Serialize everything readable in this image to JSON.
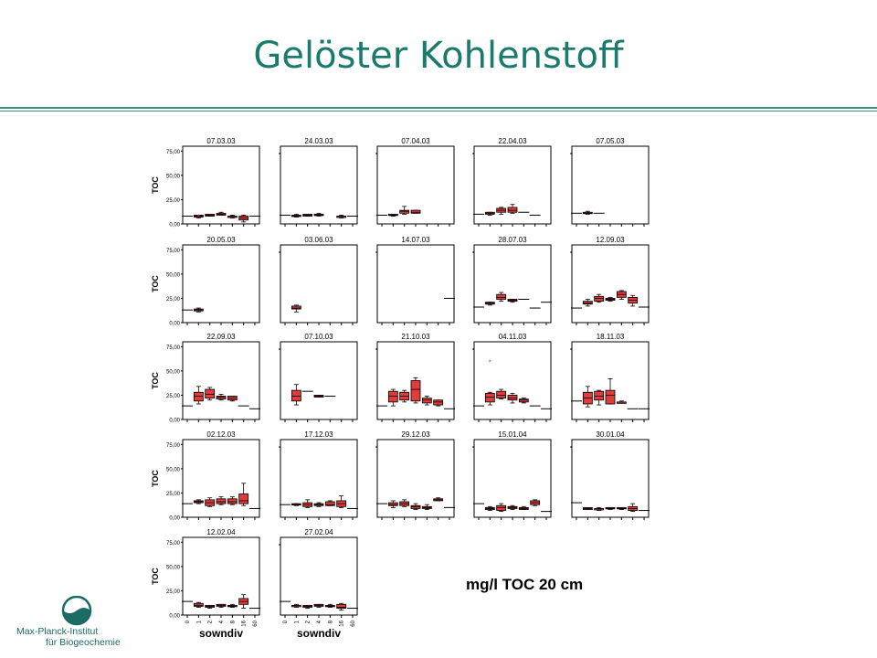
{
  "title": "Gelöster Kohlenstoff",
  "caption": "mg/l TOC 20 cm",
  "logo": {
    "line1": "Max-Planck-Institut",
    "line2": "für Biogeochemie"
  },
  "colors": {
    "title": "#1a7a6c",
    "box": "#e23b3b",
    "rule": "#3a8f85"
  },
  "chart_data": {
    "type": "box",
    "ylabel": "TOC",
    "xlabel": "sowndiv",
    "categories": [
      "0",
      "1",
      "2",
      "4",
      "8",
      "16",
      "60"
    ],
    "yticks": [
      "0,00",
      "25,00",
      "50,00",
      "75,00"
    ],
    "ylim": [
      0,
      80
    ],
    "panels": [
      {
        "date": "07.03.03",
        "boxes": [
          {
            "c": 0,
            "line": 8
          },
          {
            "c": 1,
            "min": 6,
            "q1": 7,
            "med": 8,
            "q3": 9,
            "max": 9
          },
          {
            "c": 2,
            "min": 8,
            "q1": 8,
            "med": 9,
            "q3": 10,
            "max": 10
          },
          {
            "c": 3,
            "min": 9,
            "q1": 9,
            "med": 10,
            "q3": 11,
            "max": 12
          },
          {
            "c": 4,
            "min": 6,
            "q1": 7,
            "med": 8,
            "q3": 8,
            "max": 9
          },
          {
            "c": 5,
            "min": 2,
            "q1": 4,
            "med": 6,
            "q3": 8,
            "max": 9
          },
          {
            "c": 6,
            "line": 8
          }
        ],
        "outliers": [
          {
            "c": 1,
            "y": 6
          }
        ]
      },
      {
        "date": "24.03.03",
        "boxes": [
          {
            "c": 0,
            "line": 9
          },
          {
            "c": 1,
            "min": 7,
            "q1": 8,
            "med": 8,
            "q3": 9,
            "max": 10
          },
          {
            "c": 2,
            "min": 8,
            "q1": 8,
            "med": 9,
            "q3": 10,
            "max": 10
          },
          {
            "c": 3,
            "min": 8,
            "q1": 9,
            "med": 9,
            "q3": 10,
            "max": 11
          },
          {
            "c": 5,
            "min": 6,
            "q1": 7,
            "med": 8,
            "q3": 8,
            "max": 9
          },
          {
            "c": 6,
            "line": 8
          }
        ],
        "outliers": []
      },
      {
        "date": "07.04.03",
        "boxes": [
          {
            "c": 0,
            "line": 9
          },
          {
            "c": 1,
            "min": 8,
            "q1": 9,
            "med": 9,
            "q3": 10,
            "max": 10
          },
          {
            "c": 2,
            "min": 10,
            "q1": 11,
            "med": 13,
            "q3": 14,
            "max": 18
          },
          {
            "c": 3,
            "min": 11,
            "q1": 11,
            "med": 12,
            "q3": 14,
            "max": 14
          }
        ],
        "outliers": []
      },
      {
        "date": "22.04.03",
        "boxes": [
          {
            "c": 0,
            "line": 10
          },
          {
            "c": 1,
            "min": 9,
            "q1": 10,
            "med": 11,
            "q3": 12,
            "max": 12
          },
          {
            "c": 2,
            "min": 10,
            "q1": 12,
            "med": 14,
            "q3": 16,
            "max": 17
          },
          {
            "c": 3,
            "min": 11,
            "q1": 12,
            "med": 14,
            "q3": 17,
            "max": 20
          },
          {
            "c": 4,
            "line": 12
          },
          {
            "c": 5,
            "line": 9
          }
        ],
        "outliers": []
      },
      {
        "date": "07.05.03",
        "boxes": [
          {
            "c": 0,
            "line": 11
          },
          {
            "c": 1,
            "min": 10,
            "q1": 11,
            "med": 11,
            "q3": 12,
            "max": 13
          },
          {
            "c": 2,
            "line": 11
          }
        ],
        "outliers": []
      },
      {
        "date": "20.05.03",
        "boxes": [
          {
            "c": 0,
            "line": 13
          },
          {
            "c": 1,
            "min": 11,
            "q1": 12,
            "med": 13,
            "q3": 14,
            "max": 15
          }
        ],
        "outliers": []
      },
      {
        "date": "03.06.03",
        "boxes": [
          {
            "c": 1,
            "min": 11,
            "q1": 14,
            "med": 15,
            "q3": 17,
            "max": 18
          }
        ],
        "outliers": []
      },
      {
        "date": "14.07.03",
        "boxes": [
          {
            "c": 6,
            "line": 25
          }
        ],
        "outliers": []
      },
      {
        "date": "28.07.03",
        "boxes": [
          {
            "c": 0,
            "line": 16
          },
          {
            "c": 1,
            "min": 18,
            "q1": 19,
            "med": 20,
            "q3": 21,
            "max": 21
          },
          {
            "c": 2,
            "min": 22,
            "q1": 24,
            "med": 26,
            "q3": 29,
            "max": 31
          },
          {
            "c": 3,
            "min": 21,
            "q1": 22,
            "med": 23,
            "q3": 24,
            "max": 24
          },
          {
            "c": 4,
            "line": 24
          },
          {
            "c": 5,
            "line": 15
          },
          {
            "c": 6,
            "line": 21
          }
        ],
        "outliers": []
      },
      {
        "date": "12.09.03",
        "boxes": [
          {
            "c": 0,
            "line": 15
          },
          {
            "c": 1,
            "min": 17,
            "q1": 19,
            "med": 20,
            "q3": 22,
            "max": 24
          },
          {
            "c": 2,
            "min": 21,
            "q1": 22,
            "med": 25,
            "q3": 27,
            "max": 29
          },
          {
            "c": 3,
            "min": 22,
            "q1": 23,
            "med": 24,
            "q3": 25,
            "max": 26
          },
          {
            "c": 4,
            "min": 24,
            "q1": 26,
            "med": 29,
            "q3": 32,
            "max": 33
          },
          {
            "c": 5,
            "min": 17,
            "q1": 20,
            "med": 23,
            "q3": 26,
            "max": 28
          },
          {
            "c": 6,
            "line": 16
          }
        ],
        "outliers": []
      },
      {
        "date": "22.09.03",
        "boxes": [
          {
            "c": 0,
            "line": 14
          },
          {
            "c": 1,
            "min": 16,
            "q1": 19,
            "med": 24,
            "q3": 28,
            "max": 34
          },
          {
            "c": 2,
            "min": 20,
            "q1": 22,
            "med": 26,
            "q3": 31,
            "max": 33
          },
          {
            "c": 3,
            "min": 20,
            "q1": 21,
            "med": 23,
            "q3": 24,
            "max": 26
          },
          {
            "c": 4,
            "min": 19,
            "q1": 20,
            "med": 22,
            "q3": 24,
            "max": 24
          },
          {
            "c": 5,
            "line": 14
          },
          {
            "c": 6,
            "line": 11
          }
        ],
        "outliers": []
      },
      {
        "date": "07.10.03",
        "boxes": [
          {
            "c": 1,
            "min": 15,
            "q1": 19,
            "med": 24,
            "q3": 30,
            "max": 36
          },
          {
            "c": 2,
            "line": 29
          },
          {
            "c": 3,
            "min": 23,
            "q1": 23,
            "med": 24,
            "q3": 25,
            "max": 25
          },
          {
            "c": 4,
            "line": 24
          }
        ],
        "outliers": []
      },
      {
        "date": "21.10.03",
        "boxes": [
          {
            "c": 0,
            "line": 14
          },
          {
            "c": 1,
            "min": 14,
            "q1": 18,
            "med": 24,
            "q3": 29,
            "max": 31
          },
          {
            "c": 2,
            "min": 18,
            "q1": 20,
            "med": 24,
            "q3": 28,
            "max": 30
          },
          {
            "c": 3,
            "min": 17,
            "q1": 19,
            "med": 31,
            "q3": 40,
            "max": 43
          },
          {
            "c": 4,
            "min": 15,
            "q1": 17,
            "med": 20,
            "q3": 22,
            "max": 24
          },
          {
            "c": 5,
            "min": 14,
            "q1": 15,
            "med": 18,
            "q3": 20,
            "max": 20
          },
          {
            "c": 6,
            "line": 11
          }
        ],
        "outliers": []
      },
      {
        "date": "04.11.03",
        "boxes": [
          {
            "c": 0,
            "line": 14
          },
          {
            "c": 1,
            "min": 15,
            "q1": 18,
            "med": 23,
            "q3": 27,
            "max": 28
          },
          {
            "c": 2,
            "min": 21,
            "q1": 22,
            "med": 25,
            "q3": 29,
            "max": 31
          },
          {
            "c": 3,
            "min": 17,
            "q1": 20,
            "med": 22,
            "q3": 25,
            "max": 27
          },
          {
            "c": 4,
            "min": 17,
            "q1": 18,
            "med": 20,
            "q3": 21,
            "max": 22
          },
          {
            "c": 5,
            "line": 14
          },
          {
            "c": 6,
            "line": 11
          }
        ],
        "outliers": [
          {
            "c": 1,
            "y": 58
          }
        ]
      },
      {
        "date": "18.11.03",
        "boxes": [
          {
            "c": 0,
            "line": 19
          },
          {
            "c": 1,
            "min": 13,
            "q1": 16,
            "med": 22,
            "q3": 28,
            "max": 34
          },
          {
            "c": 2,
            "min": 15,
            "q1": 20,
            "med": 24,
            "q3": 29,
            "max": 30
          },
          {
            "c": 3,
            "min": 16,
            "q1": 16,
            "med": 25,
            "q3": 30,
            "max": 42
          },
          {
            "c": 4,
            "min": 17,
            "q1": 17,
            "med": 18,
            "q3": 18,
            "max": 19
          },
          {
            "c": 5,
            "line": 11
          },
          {
            "c": 6,
            "line": 11
          }
        ],
        "outliers": []
      },
      {
        "date": "02.12.03",
        "boxes": [
          {
            "c": 0,
            "line": 14
          },
          {
            "c": 1,
            "min": 14,
            "q1": 15,
            "med": 16,
            "q3": 17,
            "max": 18
          },
          {
            "c": 2,
            "min": 11,
            "q1": 12,
            "med": 15,
            "q3": 18,
            "max": 20
          },
          {
            "c": 3,
            "min": 13,
            "q1": 14,
            "med": 16,
            "q3": 19,
            "max": 21
          },
          {
            "c": 4,
            "min": 13,
            "q1": 14,
            "med": 16,
            "q3": 19,
            "max": 21
          },
          {
            "c": 5,
            "min": 12,
            "q1": 14,
            "med": 17,
            "q3": 24,
            "max": 35
          },
          {
            "c": 6,
            "line": 9
          }
        ],
        "outliers": []
      },
      {
        "date": "17.12.03",
        "boxes": [
          {
            "c": 0,
            "line": 13
          },
          {
            "c": 1,
            "min": 12,
            "q1": 13,
            "med": 13,
            "q3": 14,
            "max": 14
          },
          {
            "c": 2,
            "min": 10,
            "q1": 11,
            "med": 13,
            "q3": 15,
            "max": 18
          },
          {
            "c": 3,
            "min": 11,
            "q1": 12,
            "med": 13,
            "q3": 14,
            "max": 15
          },
          {
            "c": 4,
            "min": 12,
            "q1": 12,
            "med": 13,
            "q3": 16,
            "max": 17
          },
          {
            "c": 5,
            "min": 10,
            "q1": 11,
            "med": 14,
            "q3": 17,
            "max": 22
          },
          {
            "c": 6,
            "line": 9
          }
        ],
        "outliers": []
      },
      {
        "date": "29.12.03",
        "boxes": [
          {
            "c": 0,
            "line": 14
          },
          {
            "c": 1,
            "min": 10,
            "q1": 12,
            "med": 13,
            "q3": 15,
            "max": 17
          },
          {
            "c": 2,
            "min": 11,
            "q1": 12,
            "med": 14,
            "q3": 16,
            "max": 18
          },
          {
            "c": 3,
            "min": 8,
            "q1": 9,
            "med": 11,
            "q3": 12,
            "max": 14
          },
          {
            "c": 4,
            "min": 8,
            "q1": 9,
            "med": 10,
            "q3": 11,
            "max": 13
          },
          {
            "c": 5,
            "min": 17,
            "q1": 17,
            "med": 18,
            "q3": 19,
            "max": 20
          },
          {
            "c": 6,
            "line": 10
          }
        ],
        "outliers": []
      },
      {
        "date": "15.01.04",
        "boxes": [
          {
            "c": 0,
            "line": 14
          },
          {
            "c": 1,
            "min": 7,
            "q1": 8,
            "med": 9,
            "q3": 10,
            "max": 11
          },
          {
            "c": 2,
            "min": 6,
            "q1": 7,
            "med": 10,
            "q3": 12,
            "max": 14
          },
          {
            "c": 3,
            "min": 8,
            "q1": 9,
            "med": 10,
            "q3": 11,
            "max": 12
          },
          {
            "c": 4,
            "min": 8,
            "q1": 8,
            "med": 9,
            "q3": 10,
            "max": 11
          },
          {
            "c": 5,
            "min": 12,
            "q1": 13,
            "med": 15,
            "q3": 17,
            "max": 18
          },
          {
            "c": 6,
            "line": 6
          }
        ],
        "outliers": []
      },
      {
        "date": "30.01.04",
        "boxes": [
          {
            "c": 0,
            "line": 15
          },
          {
            "c": 1,
            "min": 8,
            "q1": 8,
            "med": 9,
            "q3": 10,
            "max": 10
          },
          {
            "c": 2,
            "min": 7,
            "q1": 8,
            "med": 9,
            "q3": 9,
            "max": 10
          },
          {
            "c": 3,
            "min": 8,
            "q1": 9,
            "med": 9,
            "q3": 10,
            "max": 10
          },
          {
            "c": 4,
            "min": 8,
            "q1": 9,
            "med": 9,
            "q3": 10,
            "max": 10
          },
          {
            "c": 5,
            "min": 6,
            "q1": 7,
            "med": 9,
            "q3": 11,
            "max": 14
          },
          {
            "c": 6,
            "line": 7
          }
        ],
        "outliers": []
      },
      {
        "date": "12.02.04",
        "boxes": [
          {
            "c": 0,
            "line": 14
          },
          {
            "c": 1,
            "min": 8,
            "q1": 9,
            "med": 10,
            "q3": 12,
            "max": 13
          },
          {
            "c": 2,
            "min": 7,
            "q1": 8,
            "med": 9,
            "q3": 10,
            "max": 10
          },
          {
            "c": 3,
            "min": 8,
            "q1": 9,
            "med": 10,
            "q3": 11,
            "max": 11
          },
          {
            "c": 4,
            "min": 8,
            "q1": 9,
            "med": 9,
            "q3": 10,
            "max": 11
          },
          {
            "c": 5,
            "min": 7,
            "q1": 11,
            "med": 14,
            "q3": 17,
            "max": 21
          },
          {
            "c": 6,
            "line": 7
          }
        ],
        "outliers": []
      },
      {
        "date": "27.02.04",
        "boxes": [
          {
            "c": 0,
            "line": 14
          },
          {
            "c": 1,
            "min": 8,
            "q1": 9,
            "med": 10,
            "q3": 10,
            "max": 11
          },
          {
            "c": 2,
            "min": 7,
            "q1": 8,
            "med": 9,
            "q3": 10,
            "max": 10
          },
          {
            "c": 3,
            "min": 8,
            "q1": 9,
            "med": 10,
            "q3": 11,
            "max": 11
          },
          {
            "c": 4,
            "min": 8,
            "q1": 9,
            "med": 9,
            "q3": 10,
            "max": 11
          },
          {
            "c": 5,
            "min": 5,
            "q1": 7,
            "med": 8,
            "q3": 11,
            "max": 12
          },
          {
            "c": 6,
            "line": 7
          }
        ],
        "outliers": []
      }
    ]
  }
}
